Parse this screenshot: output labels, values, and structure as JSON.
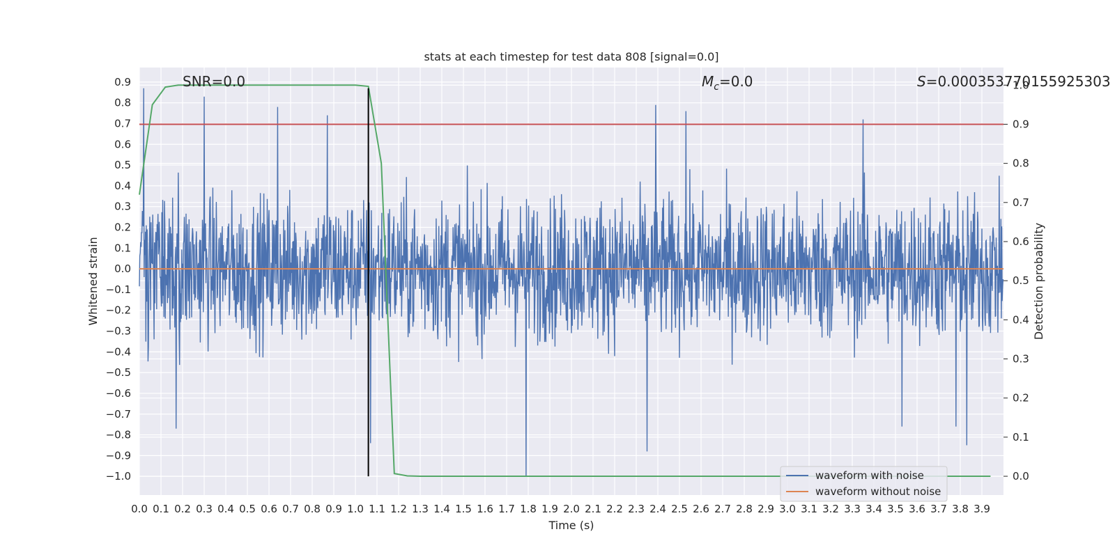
{
  "chart_data": {
    "type": "line",
    "title": "stats at each timestep for test data 808 [signal=0.0]",
    "xlabel": "Time (s)",
    "ylabel": "Whitened strain",
    "y2label": "Detection probability",
    "xlim": [
      0.0,
      4.0
    ],
    "ylim": [
      -1.09,
      0.97
    ],
    "y2lim": [
      -0.048,
      1.045
    ],
    "x_ticks": [
      "0.0",
      "0.1",
      "0.2",
      "0.3",
      "0.4",
      "0.5",
      "0.6",
      "0.7",
      "0.8",
      "0.9",
      "1.0",
      "1.1",
      "1.2",
      "1.3",
      "1.4",
      "1.5",
      "1.6",
      "1.7",
      "1.8",
      "1.9",
      "2.0",
      "2.1",
      "2.2",
      "2.3",
      "2.4",
      "2.5",
      "2.6",
      "2.7",
      "2.8",
      "2.9",
      "3.0",
      "3.1",
      "3.2",
      "3.3",
      "3.4",
      "3.5",
      "3.6",
      "3.7",
      "3.8",
      "3.9"
    ],
    "y_ticks": [
      "0.9",
      "0.8",
      "0.7",
      "0.6",
      "0.5",
      "0.4",
      "0.3",
      "0.2",
      "0.1",
      "0.0",
      "−0.1",
      "−0.2",
      "−0.3",
      "−0.4",
      "−0.5",
      "−0.6",
      "−0.7",
      "−0.8",
      "−0.9",
      "−1.0"
    ],
    "y2_ticks": [
      "1.0",
      "0.9",
      "0.8",
      "0.7",
      "0.6",
      "0.5",
      "0.4",
      "0.3",
      "0.2",
      "0.1",
      "0.0"
    ],
    "grid": true,
    "legend_placement": "lower-right",
    "annotations": {
      "snr": "SNR=0.0",
      "mc_symbol": "M",
      "mc_sub": "c",
      "mc_value": "=0.0",
      "s_symbol": "S",
      "s_value": "=0.000353770155925303"
    },
    "series": [
      {
        "name": "waveform with noise",
        "color": "#4c72b0",
        "axis": "left",
        "style": "dense noise, sample spacing 0.002 s, typical amplitude about ±0.35, peak values listed",
        "peaks": [
          {
            "x": 0.02,
            "y": 0.87
          },
          {
            "x": 0.3,
            "y": 0.83
          },
          {
            "x": 0.64,
            "y": 0.78
          },
          {
            "x": 0.87,
            "y": 0.74
          },
          {
            "x": 2.39,
            "y": 0.79
          },
          {
            "x": 2.53,
            "y": 0.76
          },
          {
            "x": 3.35,
            "y": 0.72
          },
          {
            "x": 0.17,
            "y": -0.77
          },
          {
            "x": 1.07,
            "y": -0.84
          },
          {
            "x": 1.79,
            "y": -1.0
          },
          {
            "x": 2.35,
            "y": -0.88
          },
          {
            "x": 3.83,
            "y": -0.85
          },
          {
            "x": 3.53,
            "y": -0.76
          },
          {
            "x": 3.78,
            "y": -0.76
          }
        ]
      },
      {
        "name": "waveform without noise",
        "color": "#dd8452",
        "axis": "left",
        "x": [
          0.0,
          4.0
        ],
        "y": [
          0.0,
          0.0
        ]
      },
      {
        "name": "",
        "color": "#55a868",
        "axis": "right",
        "x": [
          0.0,
          0.06,
          0.12,
          0.18,
          0.24,
          0.3,
          0.6,
          1.0,
          1.06,
          1.12,
          1.18,
          1.24,
          1.3,
          2.0,
          3.0,
          3.94
        ],
        "y": [
          0.72,
          0.95,
          0.995,
          1.0,
          1.0,
          1.0,
          1.0,
          1.0,
          0.997,
          0.8,
          0.007,
          0.001,
          0.0,
          0.0,
          0.0,
          0.0
        ]
      },
      {
        "name": "",
        "color": "#c44e52",
        "axis": "right",
        "x": [
          0.0,
          4.0
        ],
        "y": [
          0.9,
          0.9
        ]
      }
    ],
    "vertical_line": {
      "x": 1.06,
      "color": "#000000",
      "from_y": -1.0,
      "to_y": 0.87
    },
    "legend": [
      "waveform with noise",
      "waveform without noise"
    ]
  }
}
